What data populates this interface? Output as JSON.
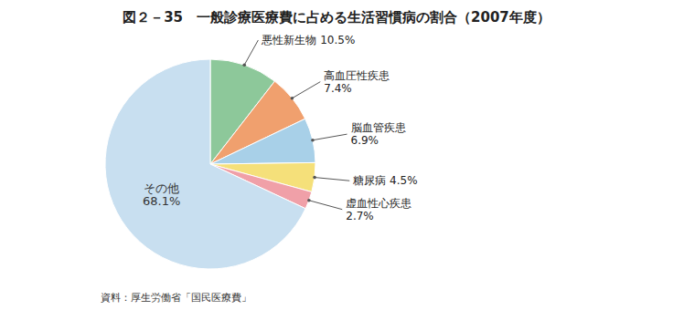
{
  "chart_data": {
    "type": "pie",
    "title": "図２－35　一般診療医療費に占める生活習慣病の割合（2007年度）",
    "values": [
      10.5,
      7.4,
      6.9,
      4.5,
      2.7,
      68.1
    ],
    "value_labels": [
      "悪性新生物  10.5%",
      "高血圧性疾患\n7.4%",
      "脳血管疾患\n6.9%",
      "糖尿病  4.5%",
      "虚血性心疾患\n2.7%",
      "その他\n68.1%"
    ],
    "colors": [
      "#8dc89a",
      "#f0a06e",
      "#a8d0e8",
      "#f5e07a",
      "#f0a0a8",
      "#c8dff0"
    ],
    "annotations": [
      "資料：厚生労働省「国民医療費」"
    ]
  }
}
